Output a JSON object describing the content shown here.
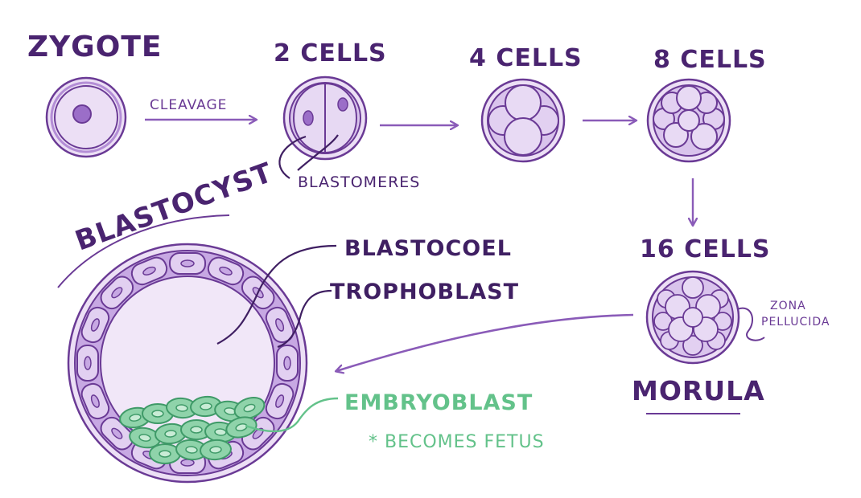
{
  "labels": {
    "zygote": "ZYGOTE",
    "two_cells": "2 CELLS",
    "four_cells": "4 CELLS",
    "eight_cells": "8 CELLS",
    "sixteen_cells": "16 CELLS",
    "cleavage": "CLEAVAGE",
    "blastomeres": "BLASTOMERES",
    "blastocyst": "BLASTOCYST",
    "blastocoel": "BLASTOCOEL",
    "trophoblast": "TROPHOBLAST",
    "embryoblast": "EMBRYOBLAST",
    "becomes_fetus": "* BECOMES FETUS",
    "morula": "MORULA",
    "zona_line1": "ZONA",
    "zona_line2": "PELLUCIDA"
  },
  "colors": {
    "outline": "#6a3a95",
    "membrane": "#b48ed6",
    "fill": "#ecdff5",
    "cell": "#e2d0f1",
    "embryoblast": "#63c28a",
    "embryoblast_fill": "#b9e4c9"
  }
}
